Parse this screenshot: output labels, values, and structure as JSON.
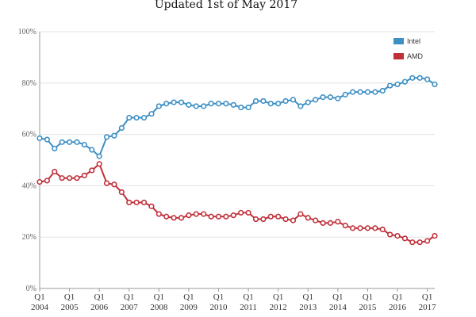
{
  "subtitle": "Updated 1st of May 2017",
  "chart_data": {
    "type": "line",
    "title": "",
    "subtitle": "Updated 1st of May 2017",
    "xlabel": "",
    "ylabel": "",
    "ylim": [
      0,
      100
    ],
    "y_ticks": [
      "0%",
      "20%",
      "40%",
      "60%",
      "80%",
      "100%"
    ],
    "x_ticks": [
      {
        "index": 0,
        "quarter": "Q1",
        "year": "2004"
      },
      {
        "index": 4,
        "quarter": "Q1",
        "year": "2005"
      },
      {
        "index": 8,
        "quarter": "Q1",
        "year": "2006"
      },
      {
        "index": 12,
        "quarter": "Q1",
        "year": "2007"
      },
      {
        "index": 16,
        "quarter": "Q1",
        "year": "2008"
      },
      {
        "index": 20,
        "quarter": "Q1",
        "year": "2009"
      },
      {
        "index": 24,
        "quarter": "Q1",
        "year": "2010"
      },
      {
        "index": 28,
        "quarter": "Q1",
        "year": "2011"
      },
      {
        "index": 32,
        "quarter": "Q1",
        "year": "2012"
      },
      {
        "index": 36,
        "quarter": "Q1",
        "year": "2013"
      },
      {
        "index": 40,
        "quarter": "Q1",
        "year": "2014"
      },
      {
        "index": 44,
        "quarter": "Q1",
        "year": "2015"
      },
      {
        "index": 48,
        "quarter": "Q1",
        "year": "2016"
      },
      {
        "index": 52,
        "quarter": "Q1",
        "year": "2017"
      }
    ],
    "grid": true,
    "legend_position": "top-right",
    "series": [
      {
        "name": "Intel",
        "color": "#3d8fc4",
        "values": [
          58.5,
          58,
          54.5,
          57,
          57,
          57,
          56,
          54,
          51.5,
          59,
          59.5,
          62.5,
          66.5,
          66.5,
          66.5,
          68,
          71,
          72,
          72.5,
          72.5,
          71.5,
          71,
          71,
          72,
          72,
          72,
          71.5,
          70.5,
          70.5,
          73,
          73,
          72,
          72,
          73,
          73.5,
          71,
          72.5,
          73.5,
          74.5,
          74.5,
          74,
          75.5,
          76.5,
          76.5,
          76.5,
          76.5,
          77,
          79,
          79.5,
          80.5,
          82,
          82,
          81.5,
          79.5
        ]
      },
      {
        "name": "AMD",
        "color": "#c0303a",
        "values": [
          41.5,
          42,
          45.5,
          43,
          43,
          43,
          44,
          46,
          48.5,
          41,
          40.5,
          37.5,
          33.5,
          33.5,
          33.5,
          32,
          29,
          28,
          27.5,
          27.5,
          28.5,
          29,
          29,
          28,
          28,
          28,
          28.5,
          29.5,
          29.5,
          27,
          27,
          28,
          28,
          27,
          26.5,
          29,
          27.5,
          26.5,
          25.5,
          25.5,
          26,
          24.5,
          23.5,
          23.5,
          23.5,
          23.5,
          23,
          21,
          20.5,
          19.5,
          18,
          18,
          18.5,
          20.5
        ]
      }
    ]
  }
}
